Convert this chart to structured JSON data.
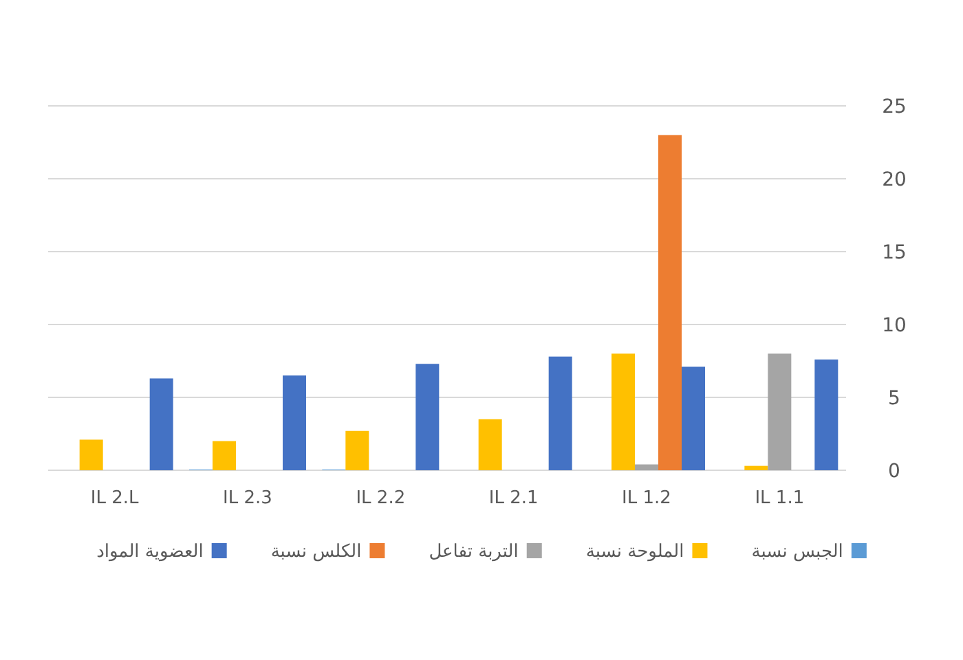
{
  "chart_data": {
    "type": "bar",
    "categories": [
      "IL 2.L",
      "IL 2.3",
      "IL 2.2",
      "IL 2.1",
      "IL 1.2",
      "IL 1.1"
    ],
    "series": [
      {
        "name": "الجبس نسبة",
        "color": "#5b9bd5",
        "values": [
          0,
          0.05,
          0.05,
          0,
          0,
          0
        ]
      },
      {
        "name": "الملوحة نسبة",
        "color": "#ffc000",
        "values": [
          2.1,
          2.0,
          2.7,
          3.5,
          8.0,
          0.3
        ]
      },
      {
        "name": "التربة تفاعل",
        "color": "#a5a5a5",
        "values": [
          0,
          0,
          0,
          0,
          0.4,
          8.0
        ]
      },
      {
        "name": "الكلس نسبة",
        "color": "#ed7d31",
        "values": [
          0,
          0,
          0,
          0,
          23,
          0
        ]
      },
      {
        "name": "العضوية المواد",
        "color": "#4472c4",
        "values": [
          6.3,
          6.5,
          7.3,
          7.8,
          7.1,
          7.6
        ]
      }
    ],
    "ylim": [
      0,
      25
    ],
    "yticks": [
      0,
      5,
      10,
      15,
      20,
      25
    ],
    "grid": "y",
    "legend": "bottom"
  }
}
